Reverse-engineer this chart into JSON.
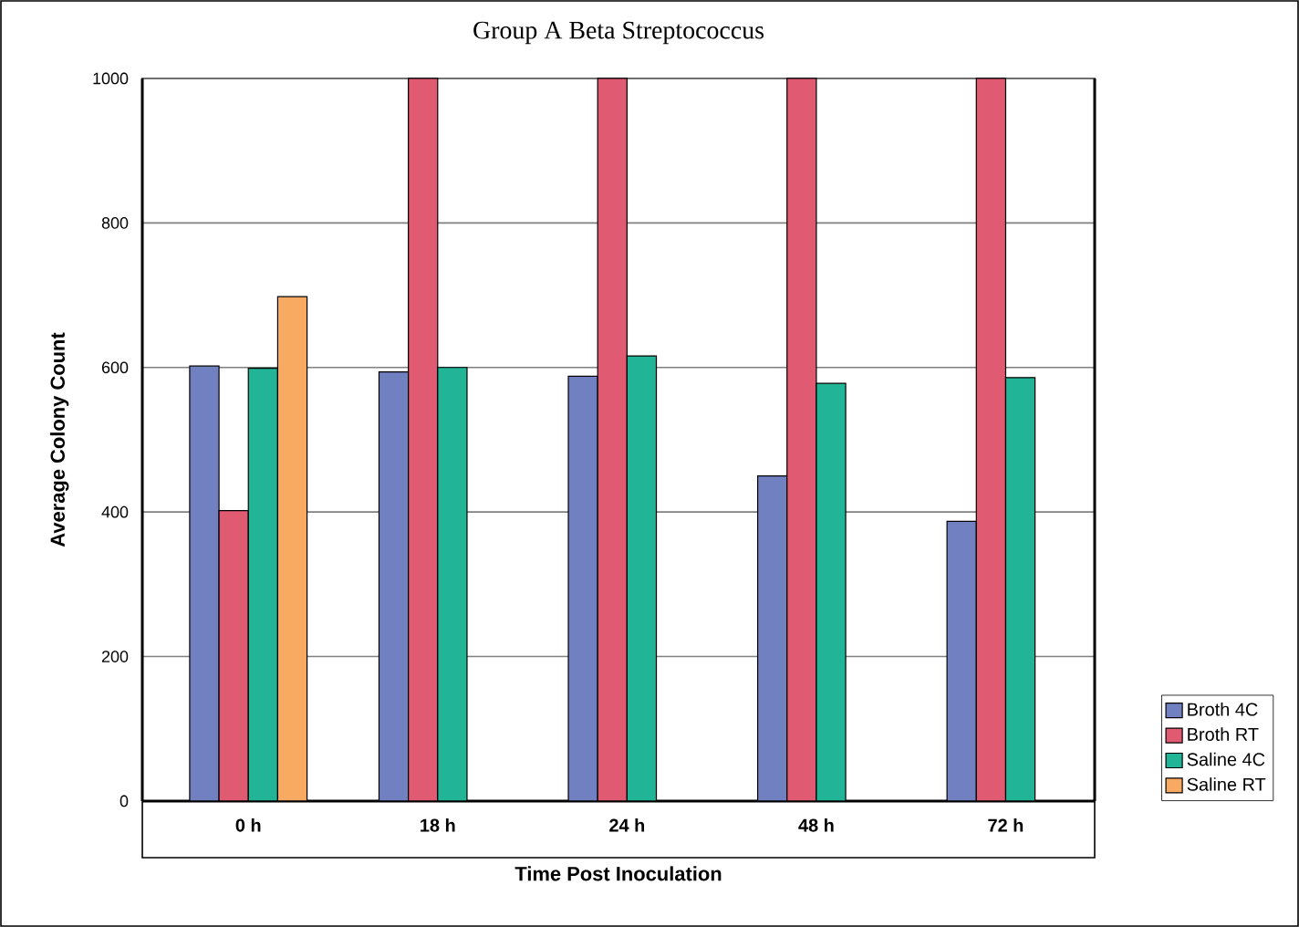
{
  "chart_data": {
    "type": "bar",
    "title": "Group A Beta Streptococcus",
    "xlabel": "Time Post Inoculation",
    "ylabel": "Average Colony Count",
    "categories": [
      "0 h",
      "18 h",
      "24 h",
      "48 h",
      "72 h"
    ],
    "series": [
      {
        "name": "Broth 4C",
        "color": "#7080c0",
        "values": [
          602,
          594,
          588,
          450,
          387
        ]
      },
      {
        "name": "Broth RT",
        "color": "#e05a72",
        "values": [
          402,
          1000,
          1000,
          1000,
          1000
        ]
      },
      {
        "name": "Saline 4C",
        "color": "#22b496",
        "values": [
          599,
          600,
          616,
          578,
          586
        ]
      },
      {
        "name": "Saline RT",
        "color": "#f8aa62",
        "values": [
          698,
          null,
          null,
          null,
          null
        ]
      }
    ],
    "ylim": [
      0,
      1000
    ],
    "yticks": [
      0,
      200,
      400,
      600,
      800,
      1000
    ],
    "grid": "y",
    "legend": "bottom right"
  }
}
